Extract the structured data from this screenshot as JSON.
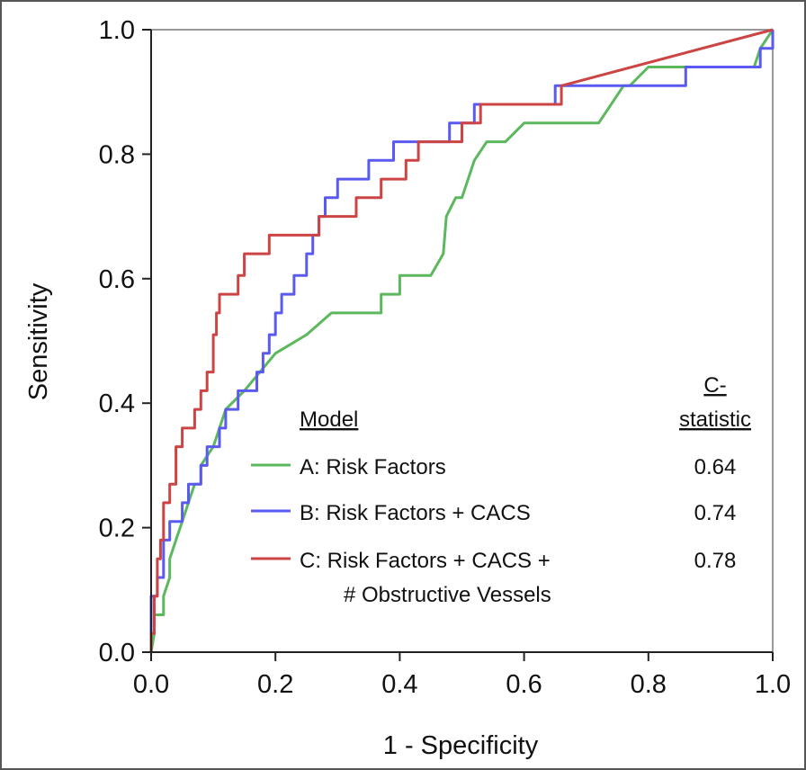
{
  "chart_data": {
    "type": "line",
    "title": "",
    "xlabel": "1 - Specificity",
    "ylabel": "Sensitivity",
    "xlim": [
      0,
      1
    ],
    "ylim": [
      0,
      1
    ],
    "x_ticks": [
      "0.0",
      "0.2",
      "0.4",
      "0.6",
      "0.8",
      "1.0"
    ],
    "y_ticks": [
      "0.0",
      "0.2",
      "0.4",
      "0.6",
      "0.8",
      "1.0"
    ],
    "grid": false,
    "legend": {
      "placement": "lower-right",
      "header_model": "Model",
      "header_stat_line1": "C-",
      "header_stat_line2": "statistic",
      "entries": [
        {
          "label": "A: Risk Factors",
          "label_line2": "",
          "stat": "0.64",
          "color": "#5cb85c"
        },
        {
          "label": "B: Risk Factors + CACS",
          "label_line2": "",
          "stat": "0.74",
          "color": "#5a5af0"
        },
        {
          "label": "C: Risk Factors + CACS +",
          "label_line2": "# Obstructive Vessels",
          "stat": "0.78",
          "color": "#cc4444"
        }
      ]
    },
    "series": [
      {
        "name": "A: Risk Factors",
        "color": "#5cb85c",
        "points": [
          [
            0,
            0
          ],
          [
            0.005,
            0.03
          ],
          [
            0.005,
            0.06
          ],
          [
            0.02,
            0.06
          ],
          [
            0.02,
            0.09
          ],
          [
            0.03,
            0.12
          ],
          [
            0.03,
            0.15
          ],
          [
            0.04,
            0.18
          ],
          [
            0.05,
            0.21
          ],
          [
            0.06,
            0.24
          ],
          [
            0.07,
            0.27
          ],
          [
            0.08,
            0.27
          ],
          [
            0.08,
            0.3
          ],
          [
            0.1,
            0.33
          ],
          [
            0.12,
            0.39
          ],
          [
            0.15,
            0.42
          ],
          [
            0.2,
            0.48
          ],
          [
            0.25,
            0.51
          ],
          [
            0.29,
            0.545
          ],
          [
            0.37,
            0.545
          ],
          [
            0.37,
            0.575
          ],
          [
            0.4,
            0.575
          ],
          [
            0.4,
            0.605
          ],
          [
            0.45,
            0.605
          ],
          [
            0.47,
            0.64
          ],
          [
            0.475,
            0.7
          ],
          [
            0.49,
            0.73
          ],
          [
            0.5,
            0.73
          ],
          [
            0.51,
            0.76
          ],
          [
            0.52,
            0.79
          ],
          [
            0.54,
            0.82
          ],
          [
            0.57,
            0.82
          ],
          [
            0.6,
            0.85
          ],
          [
            0.66,
            0.85
          ],
          [
            0.69,
            0.85
          ],
          [
            0.72,
            0.85
          ],
          [
            0.76,
            0.91
          ],
          [
            0.77,
            0.91
          ],
          [
            0.8,
            0.94
          ],
          [
            0.87,
            0.94
          ],
          [
            0.97,
            0.94
          ],
          [
            0.98,
            0.97
          ],
          [
            1.0,
            1.0
          ]
        ]
      },
      {
        "name": "B: Risk Factors + CACS",
        "color": "#5a5af0",
        "points": [
          [
            0,
            0
          ],
          [
            0,
            0.09
          ],
          [
            0.01,
            0.09
          ],
          [
            0.01,
            0.12
          ],
          [
            0.02,
            0.12
          ],
          [
            0.02,
            0.18
          ],
          [
            0.03,
            0.18
          ],
          [
            0.03,
            0.21
          ],
          [
            0.05,
            0.21
          ],
          [
            0.05,
            0.24
          ],
          [
            0.06,
            0.24
          ],
          [
            0.06,
            0.27
          ],
          [
            0.08,
            0.27
          ],
          [
            0.08,
            0.3
          ],
          [
            0.09,
            0.3
          ],
          [
            0.09,
            0.33
          ],
          [
            0.11,
            0.33
          ],
          [
            0.11,
            0.36
          ],
          [
            0.12,
            0.36
          ],
          [
            0.12,
            0.39
          ],
          [
            0.14,
            0.39
          ],
          [
            0.14,
            0.42
          ],
          [
            0.17,
            0.42
          ],
          [
            0.17,
            0.45
          ],
          [
            0.18,
            0.45
          ],
          [
            0.18,
            0.48
          ],
          [
            0.19,
            0.48
          ],
          [
            0.19,
            0.51
          ],
          [
            0.2,
            0.51
          ],
          [
            0.2,
            0.545
          ],
          [
            0.21,
            0.545
          ],
          [
            0.21,
            0.575
          ],
          [
            0.23,
            0.575
          ],
          [
            0.23,
            0.605
          ],
          [
            0.25,
            0.605
          ],
          [
            0.25,
            0.64
          ],
          [
            0.26,
            0.64
          ],
          [
            0.26,
            0.67
          ],
          [
            0.27,
            0.67
          ],
          [
            0.27,
            0.7
          ],
          [
            0.28,
            0.7
          ],
          [
            0.28,
            0.73
          ],
          [
            0.3,
            0.73
          ],
          [
            0.3,
            0.76
          ],
          [
            0.35,
            0.76
          ],
          [
            0.35,
            0.79
          ],
          [
            0.39,
            0.79
          ],
          [
            0.39,
            0.82
          ],
          [
            0.48,
            0.82
          ],
          [
            0.48,
            0.85
          ],
          [
            0.52,
            0.85
          ],
          [
            0.52,
            0.88
          ],
          [
            0.65,
            0.88
          ],
          [
            0.65,
            0.91
          ],
          [
            0.86,
            0.91
          ],
          [
            0.86,
            0.94
          ],
          [
            0.98,
            0.94
          ],
          [
            0.98,
            0.97
          ],
          [
            1.0,
            0.97
          ],
          [
            1.0,
            1.0
          ]
        ]
      },
      {
        "name": "C: Risk Factors + CACS + # Obstructive Vessels",
        "color": "#cc4444",
        "points": [
          [
            0,
            0
          ],
          [
            0,
            0.03
          ],
          [
            0.005,
            0.03
          ],
          [
            0.005,
            0.09
          ],
          [
            0.01,
            0.09
          ],
          [
            0.01,
            0.15
          ],
          [
            0.015,
            0.15
          ],
          [
            0.015,
            0.18
          ],
          [
            0.02,
            0.18
          ],
          [
            0.02,
            0.24
          ],
          [
            0.03,
            0.24
          ],
          [
            0.03,
            0.27
          ],
          [
            0.04,
            0.27
          ],
          [
            0.04,
            0.33
          ],
          [
            0.05,
            0.33
          ],
          [
            0.05,
            0.36
          ],
          [
            0.07,
            0.36
          ],
          [
            0.07,
            0.39
          ],
          [
            0.08,
            0.39
          ],
          [
            0.08,
            0.42
          ],
          [
            0.09,
            0.42
          ],
          [
            0.09,
            0.45
          ],
          [
            0.1,
            0.45
          ],
          [
            0.1,
            0.51
          ],
          [
            0.105,
            0.51
          ],
          [
            0.105,
            0.545
          ],
          [
            0.11,
            0.545
          ],
          [
            0.11,
            0.575
          ],
          [
            0.14,
            0.575
          ],
          [
            0.14,
            0.605
          ],
          [
            0.15,
            0.605
          ],
          [
            0.15,
            0.64
          ],
          [
            0.19,
            0.64
          ],
          [
            0.19,
            0.67
          ],
          [
            0.27,
            0.67
          ],
          [
            0.27,
            0.7
          ],
          [
            0.33,
            0.7
          ],
          [
            0.33,
            0.73
          ],
          [
            0.37,
            0.73
          ],
          [
            0.37,
            0.76
          ],
          [
            0.41,
            0.76
          ],
          [
            0.41,
            0.79
          ],
          [
            0.43,
            0.79
          ],
          [
            0.43,
            0.82
          ],
          [
            0.5,
            0.82
          ],
          [
            0.5,
            0.85
          ],
          [
            0.53,
            0.85
          ],
          [
            0.53,
            0.88
          ],
          [
            0.66,
            0.88
          ],
          [
            0.66,
            0.91
          ],
          [
            1.0,
            1.0
          ]
        ]
      }
    ]
  }
}
